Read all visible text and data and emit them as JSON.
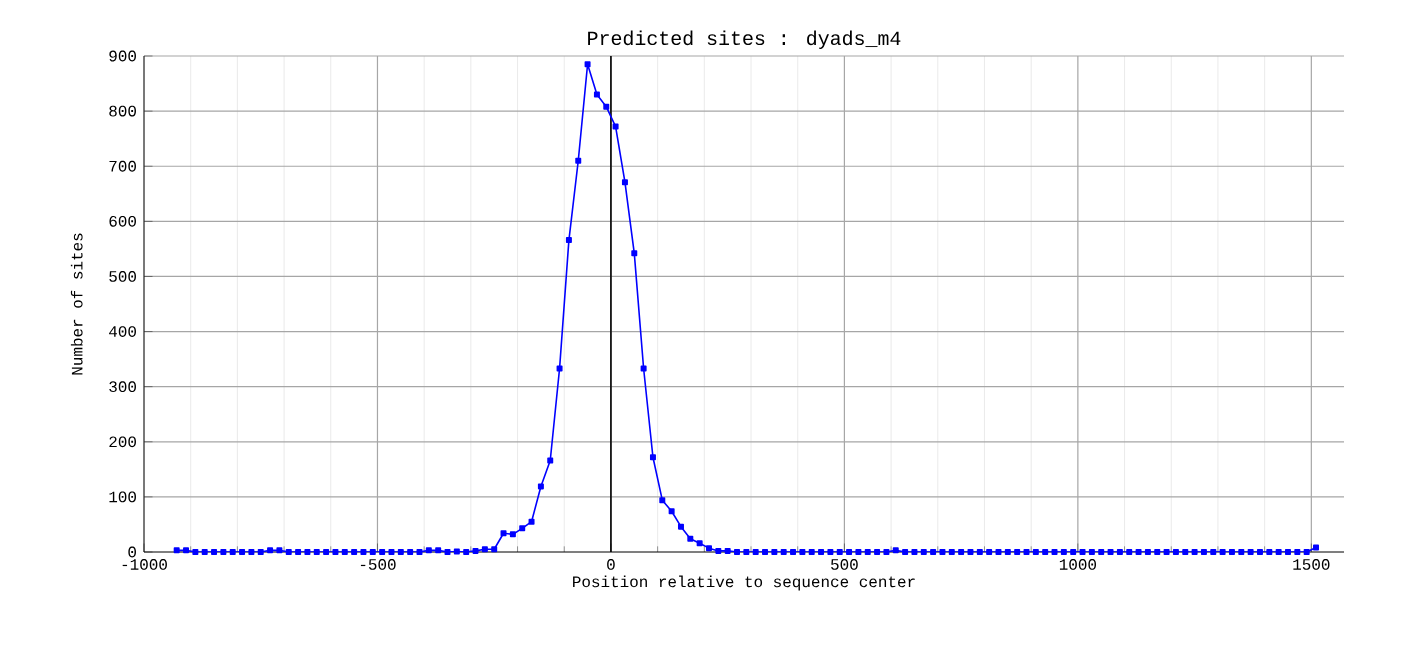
{
  "chart_data": {
    "type": "line",
    "title": "Predicted sites : dyads_m4",
    "xlabel": "Position relative to sequence center",
    "ylabel": "Number of sites",
    "x": [
      -930,
      -910,
      -890,
      -870,
      -850,
      -830,
      -810,
      -790,
      -770,
      -750,
      -730,
      -710,
      -690,
      -670,
      -650,
      -630,
      -610,
      -590,
      -570,
      -550,
      -530,
      -510,
      -490,
      -470,
      -450,
      -430,
      -410,
      -390,
      -370,
      -350,
      -330,
      -310,
      -290,
      -270,
      -250,
      -230,
      -210,
      -190,
      -170,
      -150,
      -130,
      -110,
      -90,
      -70,
      -50,
      -30,
      -10,
      10,
      30,
      50,
      70,
      90,
      110,
      130,
      150,
      170,
      190,
      210,
      230,
      250,
      270,
      290,
      310,
      330,
      350,
      370,
      390,
      410,
      430,
      450,
      470,
      490,
      510,
      530,
      550,
      570,
      590,
      610,
      630,
      650,
      670,
      690,
      710,
      730,
      750,
      770,
      790,
      810,
      830,
      850,
      870,
      890,
      910,
      930,
      950,
      970,
      990,
      1010,
      1030,
      1050,
      1070,
      1090,
      1110,
      1130,
      1150,
      1170,
      1190,
      1210,
      1230,
      1250,
      1270,
      1290,
      1310,
      1330,
      1350,
      1370,
      1390,
      1410,
      1430,
      1450,
      1470,
      1490,
      1510
    ],
    "series": [
      {
        "color": "#0000ff",
        "values": [
          3,
          3,
          0,
          0,
          0,
          0,
          0,
          0,
          0,
          0,
          3,
          3,
          0,
          0,
          0,
          0,
          0,
          0,
          0,
          0,
          0,
          0,
          0,
          0,
          0,
          0,
          0,
          3,
          3,
          0,
          1,
          0,
          2,
          5,
          5,
          34,
          32,
          43,
          55,
          119,
          166,
          333,
          566,
          710,
          885,
          830,
          808,
          772,
          671,
          542,
          333,
          172,
          94,
          74,
          46,
          24,
          16,
          7,
          2,
          2,
          0,
          0,
          0,
          0,
          0,
          0,
          0,
          0,
          0,
          0,
          0,
          0,
          0,
          0,
          0,
          0,
          0,
          3,
          0,
          0,
          0,
          0,
          0,
          0,
          0,
          0,
          0,
          0,
          0,
          0,
          0,
          0,
          0,
          0,
          0,
          0,
          0,
          0,
          0,
          0,
          0,
          0,
          0,
          0,
          0,
          0,
          0,
          0,
          0,
          0,
          0,
          0,
          0,
          0,
          0,
          0,
          0,
          0,
          0,
          0,
          0,
          0,
          8
        ]
      }
    ],
    "xlim": [
      -1000,
      1570
    ],
    "ylim": [
      0,
      900
    ],
    "xticks": [
      -1000,
      -500,
      0,
      500,
      1000,
      1500
    ],
    "yticks": [
      0,
      100,
      200,
      300,
      400,
      500,
      600,
      700,
      800,
      900
    ],
    "ref_lines": [
      {
        "axis": "x",
        "value": 0,
        "color": "#000000"
      }
    ],
    "grid": true,
    "marker": "square",
    "line_style": "solid"
  }
}
